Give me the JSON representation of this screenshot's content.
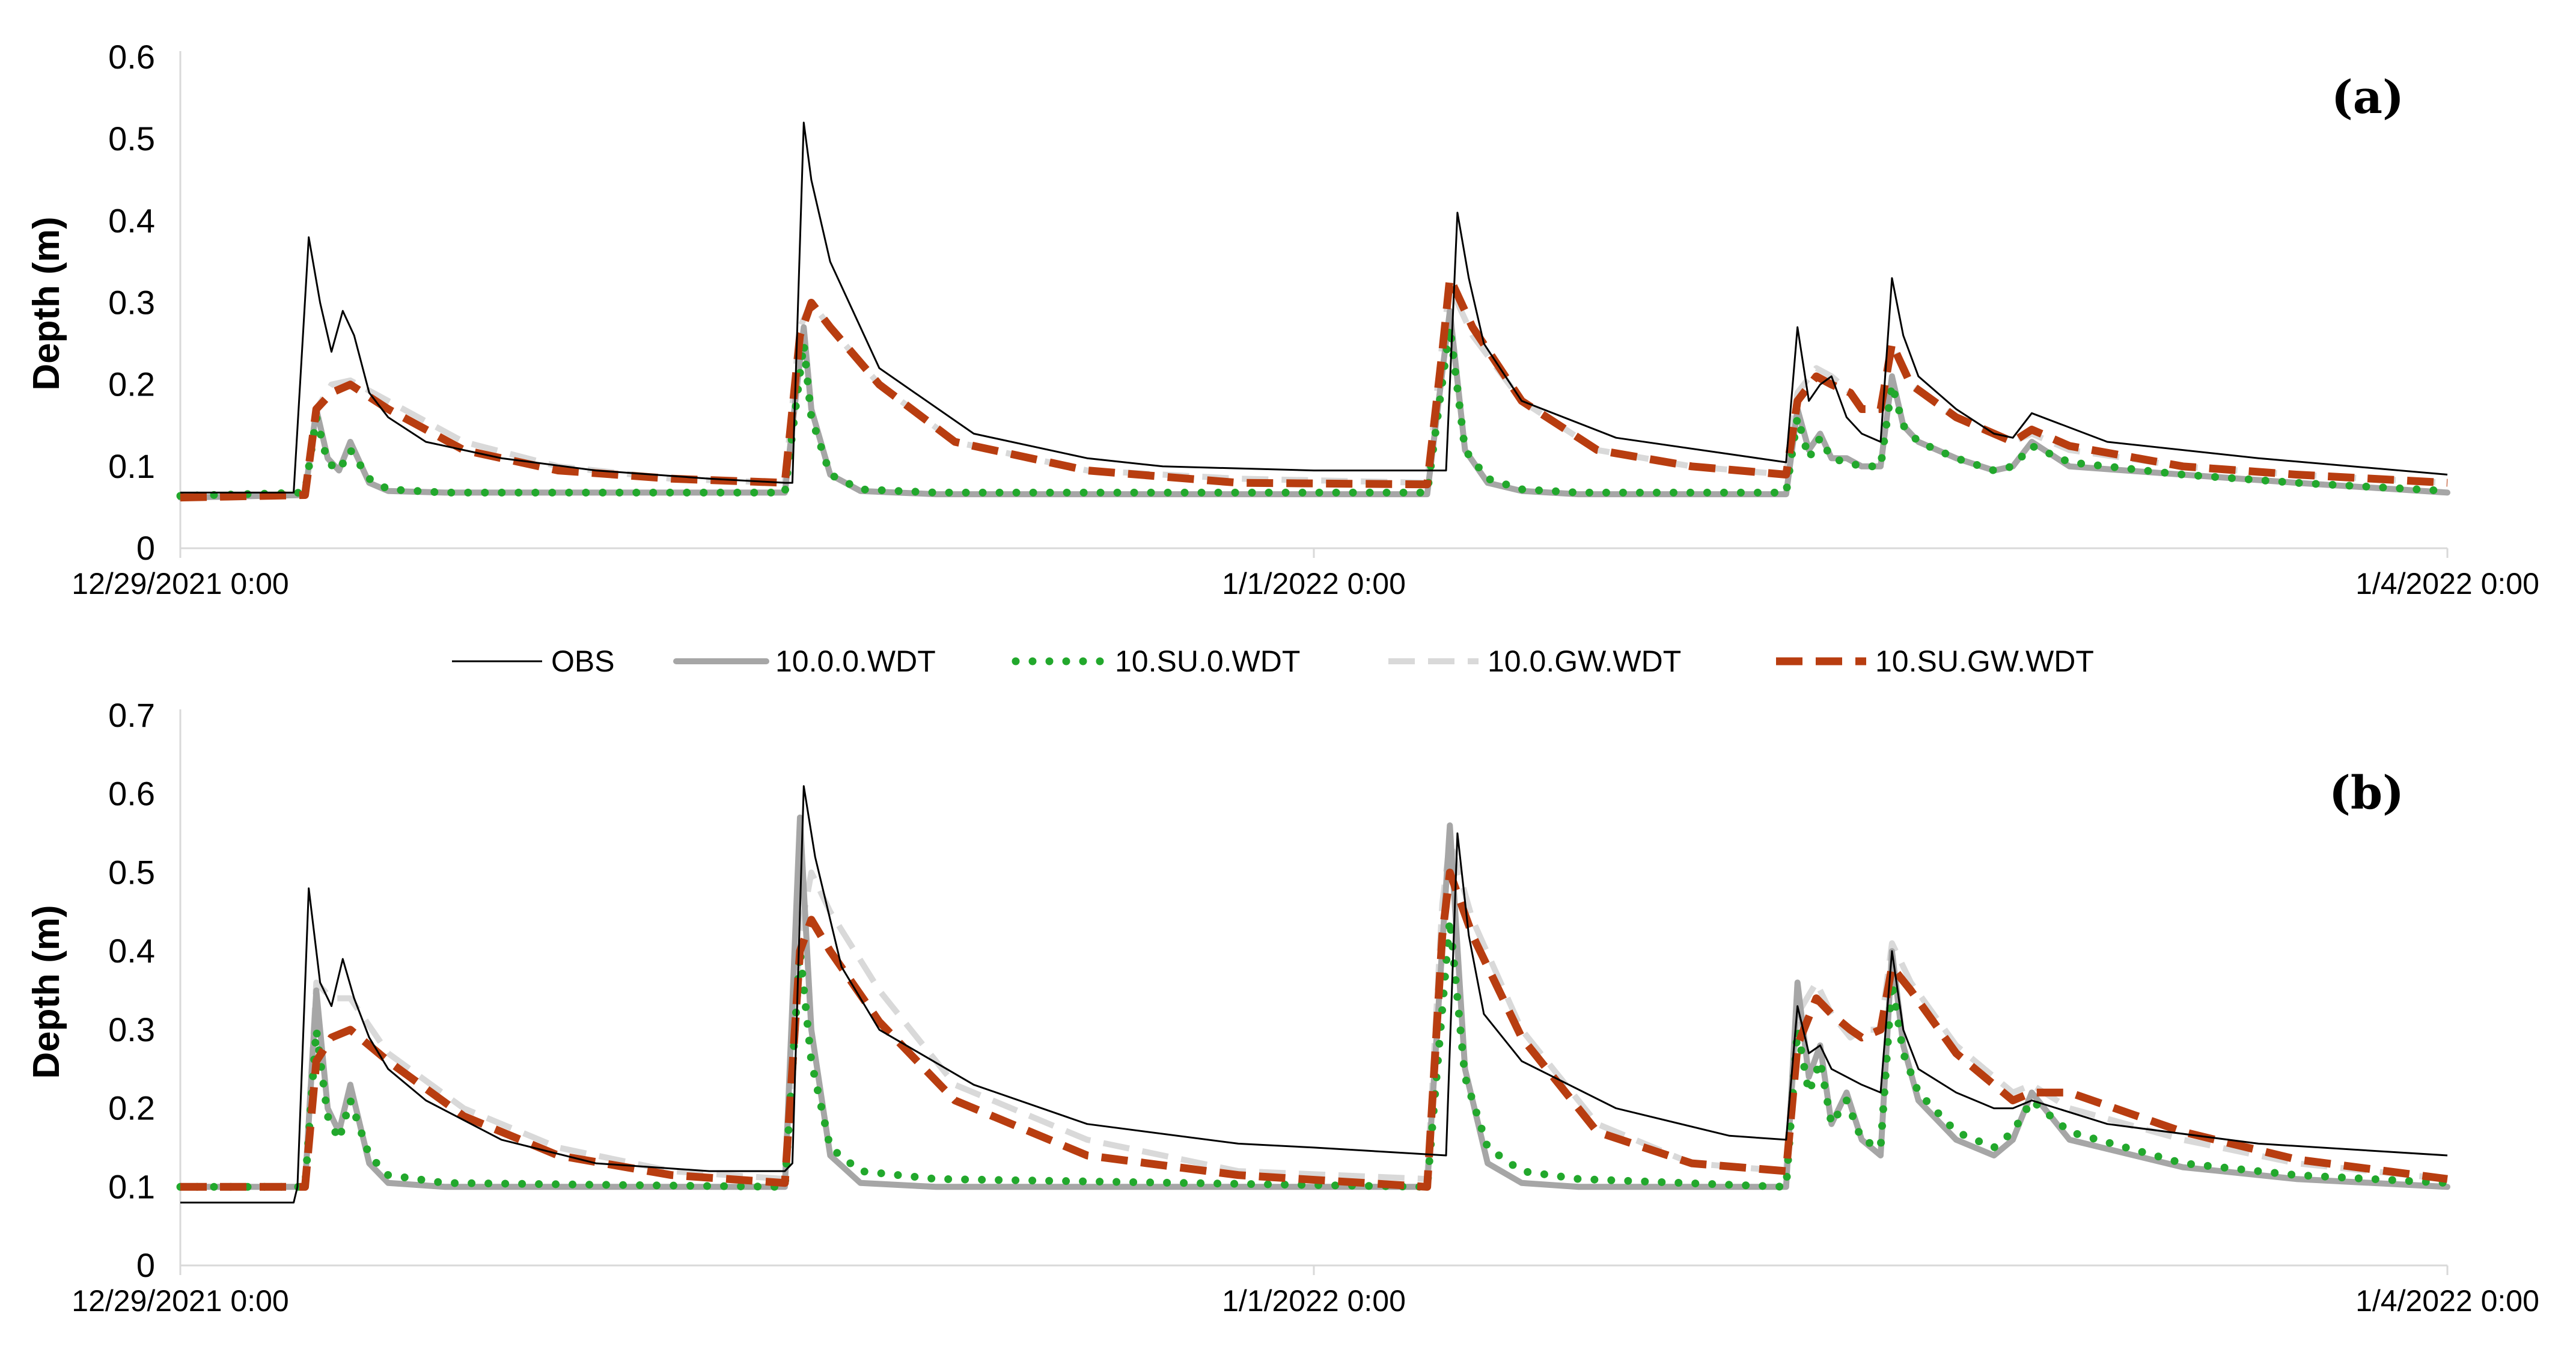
{
  "legend": [
    {
      "name": "OBS",
      "color": "#000000",
      "style": "thin-solid"
    },
    {
      "name": "10.0.0.WDT",
      "color": "#a6a6a6",
      "style": "thick-solid"
    },
    {
      "name": "10.SU.0.WDT",
      "color": "#22a82c",
      "style": "dotted"
    },
    {
      "name": "10.0.GW.WDT",
      "color": "#d9d9d9",
      "style": "dashed"
    },
    {
      "name": "10.SU.GW.WDT",
      "color": "#b83d10",
      "style": "thick-dashed"
    }
  ],
  "chart_data": [
    {
      "type": "line",
      "panel_label": "(a)",
      "ylabel": "Depth (m)",
      "ylim": [
        0,
        0.6
      ],
      "yticks": [
        "0",
        "0.1",
        "0.2",
        "0.3",
        "0.4",
        "0.5",
        "0.6"
      ],
      "xlim": [
        0,
        6
      ],
      "xticks": [
        {
          "x": 0,
          "label": "12/29/2021 0:00"
        },
        {
          "x": 3,
          "label": "1/1/2022 0:00"
        },
        {
          "x": 6,
          "label": "1/4/2022 0:00"
        }
      ],
      "grid": false,
      "series": [
        {
          "name": "OBS",
          "x": [
            0,
            0.3,
            0.34,
            0.37,
            0.4,
            0.43,
            0.46,
            0.5,
            0.55,
            0.65,
            0.85,
            1.1,
            1.4,
            1.6,
            1.62,
            1.65,
            1.67,
            1.72,
            1.85,
            2.1,
            2.4,
            2.6,
            3.0,
            3.35,
            3.38,
            3.41,
            3.45,
            3.55,
            3.8,
            4.1,
            4.25,
            4.28,
            4.31,
            4.34,
            4.37,
            4.41,
            4.45,
            4.5,
            4.53,
            4.56,
            4.6,
            4.7,
            4.8,
            4.85,
            4.9,
            5.1,
            5.5,
            6.0
          ],
          "y": [
            0.068,
            0.068,
            0.38,
            0.3,
            0.24,
            0.29,
            0.26,
            0.19,
            0.16,
            0.13,
            0.11,
            0.095,
            0.085,
            0.08,
            0.08,
            0.52,
            0.45,
            0.35,
            0.22,
            0.14,
            0.11,
            0.1,
            0.095,
            0.095,
            0.41,
            0.33,
            0.25,
            0.18,
            0.135,
            0.115,
            0.105,
            0.27,
            0.18,
            0.2,
            0.21,
            0.16,
            0.14,
            0.13,
            0.33,
            0.26,
            0.21,
            0.17,
            0.14,
            0.135,
            0.165,
            0.13,
            0.11,
            0.09
          ]
        },
        {
          "name": "10.0.0.WDT",
          "x": [
            0,
            0.33,
            0.36,
            0.39,
            0.42,
            0.45,
            0.5,
            0.55,
            0.7,
            1.6,
            1.65,
            1.67,
            1.72,
            1.8,
            2.0,
            3.3,
            3.36,
            3.4,
            3.46,
            3.55,
            3.7,
            4.25,
            4.28,
            4.31,
            4.34,
            4.37,
            4.41,
            4.45,
            4.5,
            4.53,
            4.56,
            4.6,
            4.7,
            4.8,
            4.85,
            4.9,
            5.0,
            5.3,
            5.6,
            6.0
          ],
          "y": [
            0.062,
            0.065,
            0.17,
            0.11,
            0.095,
            0.13,
            0.08,
            0.07,
            0.068,
            0.068,
            0.27,
            0.17,
            0.09,
            0.07,
            0.066,
            0.066,
            0.29,
            0.12,
            0.08,
            0.07,
            0.066,
            0.066,
            0.17,
            0.12,
            0.14,
            0.11,
            0.11,
            0.1,
            0.1,
            0.21,
            0.15,
            0.13,
            0.11,
            0.095,
            0.1,
            0.13,
            0.1,
            0.09,
            0.08,
            0.068
          ]
        },
        {
          "name": "10.SU.0.WDT",
          "x": [
            0,
            0.33,
            0.36,
            0.39,
            0.42,
            0.45,
            0.5,
            0.55,
            0.7,
            1.6,
            1.65,
            1.67,
            1.72,
            1.8,
            2.0,
            3.3,
            3.36,
            3.4,
            3.46,
            3.55,
            3.7,
            4.25,
            4.28,
            4.31,
            4.34,
            4.37,
            4.41,
            4.45,
            4.5,
            4.53,
            4.56,
            4.6,
            4.7,
            4.8,
            4.85,
            4.9,
            5.0,
            5.3,
            5.6,
            6.0
          ],
          "y": [
            0.064,
            0.068,
            0.16,
            0.105,
            0.095,
            0.12,
            0.085,
            0.072,
            0.068,
            0.068,
            0.25,
            0.16,
            0.09,
            0.072,
            0.068,
            0.068,
            0.27,
            0.12,
            0.085,
            0.072,
            0.068,
            0.068,
            0.16,
            0.11,
            0.135,
            0.11,
            0.105,
            0.1,
            0.1,
            0.2,
            0.15,
            0.13,
            0.11,
            0.095,
            0.1,
            0.125,
            0.105,
            0.09,
            0.08,
            0.07
          ]
        },
        {
          "name": "10.0.GW.WDT",
          "x": [
            0,
            0.33,
            0.36,
            0.4,
            0.45,
            0.55,
            0.75,
            1.0,
            1.3,
            1.6,
            1.64,
            1.67,
            1.72,
            1.85,
            2.05,
            2.4,
            2.8,
            3.3,
            3.34,
            3.36,
            3.42,
            3.55,
            3.75,
            4.0,
            4.25,
            4.28,
            4.33,
            4.37,
            4.42,
            4.45,
            4.5,
            4.53,
            4.58,
            4.7,
            4.85,
            4.9,
            5.0,
            5.3,
            5.6,
            6.0
          ],
          "y": [
            0.062,
            0.065,
            0.17,
            0.2,
            0.205,
            0.18,
            0.13,
            0.1,
            0.085,
            0.08,
            0.27,
            0.3,
            0.27,
            0.2,
            0.13,
            0.095,
            0.085,
            0.08,
            0.25,
            0.32,
            0.26,
            0.18,
            0.12,
            0.1,
            0.09,
            0.19,
            0.22,
            0.21,
            0.19,
            0.17,
            0.17,
            0.25,
            0.2,
            0.16,
            0.13,
            0.14,
            0.12,
            0.1,
            0.09,
            0.08
          ]
        },
        {
          "name": "10.SU.GW.WDT",
          "x": [
            0,
            0.33,
            0.36,
            0.4,
            0.45,
            0.55,
            0.75,
            1.0,
            1.3,
            1.6,
            1.64,
            1.67,
            1.72,
            1.85,
            2.05,
            2.4,
            2.8,
            3.3,
            3.34,
            3.36,
            3.42,
            3.55,
            3.75,
            4.0,
            4.25,
            4.28,
            4.33,
            4.37,
            4.42,
            4.45,
            4.5,
            4.53,
            4.58,
            4.7,
            4.85,
            4.9,
            5.0,
            5.3,
            5.6,
            6.0
          ],
          "y": [
            0.062,
            0.065,
            0.17,
            0.19,
            0.2,
            0.17,
            0.12,
            0.095,
            0.085,
            0.08,
            0.26,
            0.3,
            0.27,
            0.2,
            0.13,
            0.095,
            0.08,
            0.078,
            0.24,
            0.33,
            0.27,
            0.18,
            0.12,
            0.1,
            0.09,
            0.18,
            0.21,
            0.2,
            0.19,
            0.17,
            0.17,
            0.25,
            0.2,
            0.16,
            0.13,
            0.145,
            0.125,
            0.1,
            0.09,
            0.08
          ]
        }
      ]
    },
    {
      "type": "line",
      "panel_label": "(b)",
      "ylabel": "Depth (m)",
      "ylim": [
        0,
        0.7
      ],
      "yticks": [
        "0",
        "0.1",
        "0.2",
        "0.3",
        "0.4",
        "0.5",
        "0.6",
        "0.7"
      ],
      "xlim": [
        0,
        6
      ],
      "xticks": [
        {
          "x": 0,
          "label": "12/29/2021 0:00"
        },
        {
          "x": 3,
          "label": "1/1/2022 0:00"
        },
        {
          "x": 6,
          "label": "1/4/2022 0:00"
        }
      ],
      "grid": false,
      "series": [
        {
          "name": "OBS",
          "x": [
            0,
            0.3,
            0.31,
            0.34,
            0.37,
            0.4,
            0.43,
            0.46,
            0.5,
            0.55,
            0.65,
            0.85,
            1.1,
            1.4,
            1.6,
            1.62,
            1.65,
            1.68,
            1.75,
            1.85,
            2.1,
            2.4,
            2.8,
            3.0,
            3.35,
            3.38,
            3.41,
            3.45,
            3.55,
            3.8,
            4.1,
            4.25,
            4.28,
            4.31,
            4.34,
            4.37,
            4.41,
            4.45,
            4.5,
            4.53,
            4.56,
            4.6,
            4.7,
            4.8,
            4.85,
            4.9,
            5.1,
            5.5,
            6.0
          ],
          "y": [
            0.08,
            0.08,
            0.1,
            0.48,
            0.36,
            0.33,
            0.39,
            0.34,
            0.29,
            0.25,
            0.21,
            0.16,
            0.13,
            0.12,
            0.12,
            0.13,
            0.61,
            0.52,
            0.38,
            0.3,
            0.23,
            0.18,
            0.155,
            0.15,
            0.14,
            0.55,
            0.42,
            0.32,
            0.26,
            0.2,
            0.165,
            0.16,
            0.33,
            0.27,
            0.28,
            0.25,
            0.24,
            0.23,
            0.22,
            0.4,
            0.3,
            0.25,
            0.22,
            0.2,
            0.2,
            0.21,
            0.18,
            0.155,
            0.14
          ]
        },
        {
          "name": "10.0.0.WDT",
          "x": [
            0,
            0.33,
            0.36,
            0.39,
            0.42,
            0.45,
            0.5,
            0.55,
            0.7,
            1.6,
            1.64,
            1.67,
            1.72,
            1.8,
            2.0,
            3.3,
            3.36,
            3.4,
            3.46,
            3.55,
            3.7,
            4.25,
            4.28,
            4.31,
            4.34,
            4.37,
            4.41,
            4.45,
            4.5,
            4.53,
            4.56,
            4.6,
            4.7,
            4.8,
            4.85,
            4.9,
            5.0,
            5.3,
            5.6,
            6.0
          ],
          "y": [
            0.1,
            0.1,
            0.35,
            0.2,
            0.17,
            0.23,
            0.13,
            0.105,
            0.1,
            0.1,
            0.57,
            0.3,
            0.14,
            0.105,
            0.1,
            0.1,
            0.56,
            0.25,
            0.13,
            0.105,
            0.1,
            0.1,
            0.36,
            0.24,
            0.28,
            0.18,
            0.22,
            0.16,
            0.14,
            0.4,
            0.28,
            0.21,
            0.16,
            0.14,
            0.16,
            0.22,
            0.16,
            0.125,
            0.11,
            0.1
          ]
        },
        {
          "name": "10.SU.0.WDT",
          "x": [
            0,
            0.33,
            0.36,
            0.39,
            0.42,
            0.45,
            0.5,
            0.55,
            0.7,
            1.6,
            1.64,
            1.67,
            1.72,
            1.8,
            2.0,
            3.3,
            3.36,
            3.4,
            3.46,
            3.55,
            3.7,
            4.25,
            4.28,
            4.31,
            4.34,
            4.37,
            4.41,
            4.45,
            4.5,
            4.53,
            4.56,
            4.6,
            4.7,
            4.8,
            4.85,
            4.9,
            5.0,
            5.3,
            5.6,
            6.0
          ],
          "y": [
            0.1,
            0.1,
            0.3,
            0.19,
            0.16,
            0.21,
            0.14,
            0.115,
            0.105,
            0.1,
            0.4,
            0.26,
            0.15,
            0.12,
            0.11,
            0.1,
            0.44,
            0.24,
            0.15,
            0.12,
            0.11,
            0.1,
            0.3,
            0.22,
            0.26,
            0.18,
            0.21,
            0.16,
            0.15,
            0.36,
            0.27,
            0.22,
            0.17,
            0.15,
            0.17,
            0.21,
            0.17,
            0.13,
            0.115,
            0.105
          ]
        },
        {
          "name": "10.0.GW.WDT",
          "x": [
            0,
            0.33,
            0.36,
            0.4,
            0.45,
            0.55,
            0.75,
            1.0,
            1.3,
            1.6,
            1.64,
            1.67,
            1.72,
            1.85,
            2.05,
            2.4,
            2.8,
            3.3,
            3.34,
            3.36,
            3.42,
            3.55,
            3.75,
            4.0,
            4.25,
            4.28,
            4.33,
            4.37,
            4.42,
            4.45,
            4.5,
            4.53,
            4.58,
            4.7,
            4.85,
            4.9,
            5.0,
            5.3,
            5.6,
            6.0
          ],
          "y": [
            0.1,
            0.1,
            0.36,
            0.34,
            0.34,
            0.27,
            0.2,
            0.15,
            0.12,
            0.11,
            0.42,
            0.5,
            0.45,
            0.35,
            0.23,
            0.16,
            0.12,
            0.11,
            0.46,
            0.54,
            0.44,
            0.3,
            0.18,
            0.13,
            0.12,
            0.32,
            0.36,
            0.32,
            0.29,
            0.3,
            0.3,
            0.41,
            0.36,
            0.28,
            0.22,
            0.23,
            0.2,
            0.16,
            0.13,
            0.11
          ]
        },
        {
          "name": "10.SU.GW.WDT",
          "x": [
            0,
            0.33,
            0.36,
            0.4,
            0.45,
            0.55,
            0.75,
            1.0,
            1.3,
            1.6,
            1.64,
            1.67,
            1.72,
            1.85,
            2.05,
            2.4,
            2.8,
            3.3,
            3.34,
            3.36,
            3.42,
            3.55,
            3.75,
            4.0,
            4.25,
            4.28,
            4.33,
            4.37,
            4.42,
            4.45,
            4.5,
            4.53,
            4.58,
            4.7,
            4.85,
            4.9,
            5.0,
            5.3,
            5.6,
            6.0
          ],
          "y": [
            0.1,
            0.1,
            0.26,
            0.29,
            0.3,
            0.26,
            0.19,
            0.14,
            0.115,
            0.105,
            0.4,
            0.44,
            0.4,
            0.31,
            0.21,
            0.14,
            0.115,
            0.1,
            0.42,
            0.5,
            0.42,
            0.29,
            0.17,
            0.13,
            0.12,
            0.28,
            0.34,
            0.32,
            0.3,
            0.29,
            0.3,
            0.38,
            0.35,
            0.27,
            0.21,
            0.22,
            0.22,
            0.17,
            0.135,
            0.11
          ]
        }
      ]
    }
  ]
}
